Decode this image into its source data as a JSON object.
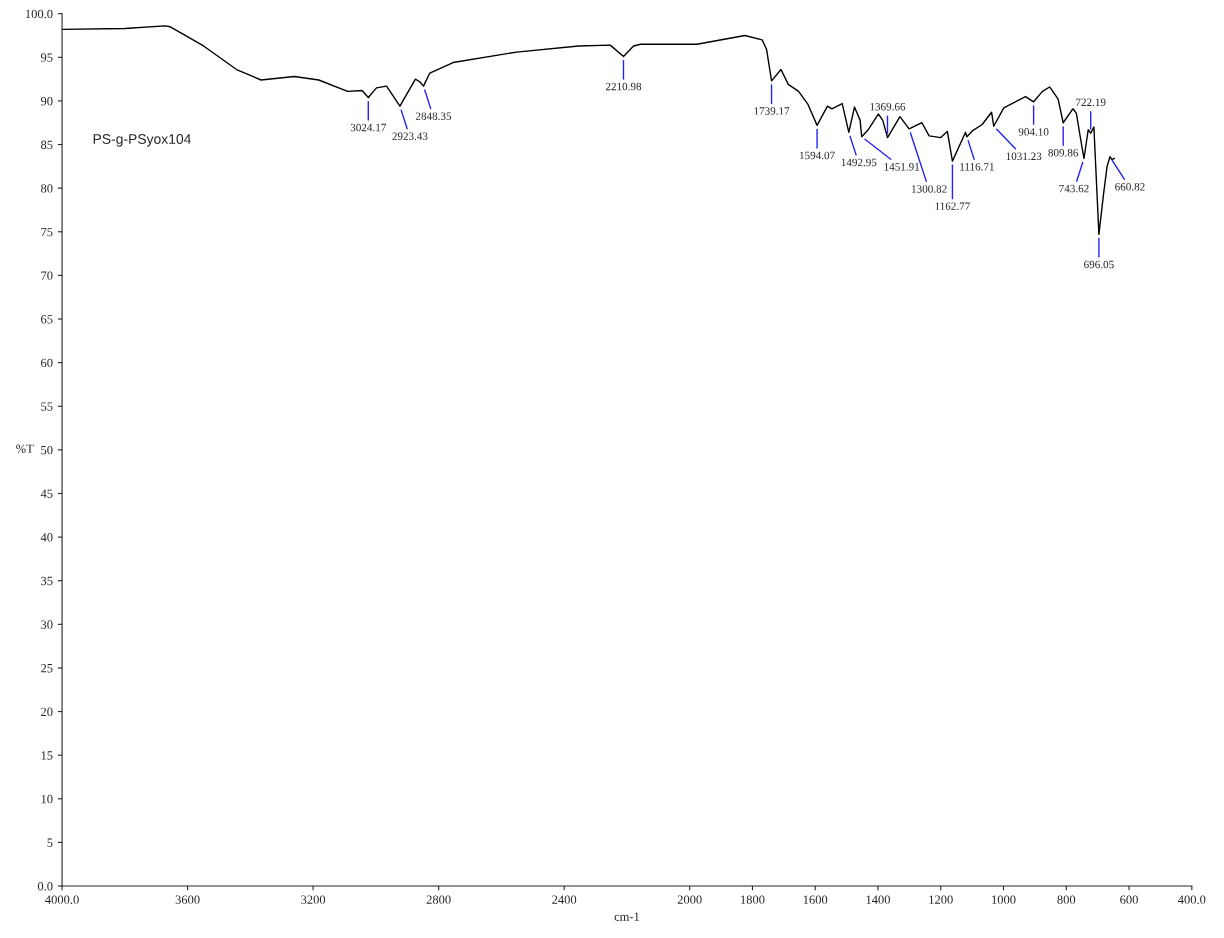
{
  "chart_data": {
    "type": "line",
    "xlabel": "cm-1",
    "ylabel": "%T",
    "xlim": [
      4000,
      400
    ],
    "ylim": [
      0,
      100
    ],
    "xticks": [
      {
        "value": 4000,
        "label": "4000.0"
      },
      3600,
      3200,
      2800,
      2400,
      2000,
      1800,
      1600,
      1400,
      1200,
      1000,
      800,
      600,
      {
        "value": 400,
        "label": "400.0"
      }
    ],
    "yticks": [
      {
        "value": 0,
        "label": "0.0"
      },
      5,
      10,
      15,
      20,
      25,
      30,
      35,
      40,
      45,
      50,
      55,
      60,
      65,
      70,
      75,
      80,
      85,
      90,
      95,
      {
        "value": 100,
        "label": "100.0"
      }
    ],
    "grid": false,
    "series": [
      {
        "color": "#000000",
        "x": [
          4000,
          3800,
          3673,
          3655,
          3549,
          3444,
          3366,
          3260,
          3182,
          3090,
          3044,
          3024.17,
          2998,
          2966,
          2923.43,
          2874,
          2860,
          2848.35,
          2828,
          2754,
          2552,
          2354,
          2253,
          2210.98,
          2179,
          2156,
          1977,
          1824,
          1769,
          1755,
          1739.17,
          1709,
          1686,
          1653,
          1623,
          1594.07,
          1561,
          1547,
          1514,
          1492.95,
          1475,
          1457,
          1451.91,
          1431,
          1399,
          1385,
          1369.66,
          1330,
          1300.82,
          1260,
          1237,
          1200,
          1179,
          1162.77,
          1121,
          1116.71,
          1098,
          1068,
          1038,
          1031.23,
          999,
          930,
          904.1,
          876,
          853,
          826,
          809.86,
          779,
          768,
          750,
          743.62,
          730,
          722.19,
          712,
          696.05,
          681,
          670,
          660.82,
          655,
          647
        ],
        "values": [
          98.2,
          98.3,
          98.6,
          98.5,
          96.3,
          93.6,
          92.4,
          92.8,
          92.4,
          91.1,
          91.2,
          90.4,
          91.5,
          91.7,
          89.4,
          92.5,
          92.2,
          91.7,
          93.2,
          94.4,
          95.6,
          96.3,
          96.4,
          95.1,
          96.3,
          96.5,
          96.5,
          97.5,
          97.0,
          95.9,
          92.3,
          93.6,
          91.9,
          91.1,
          89.6,
          87.2,
          89.4,
          89.1,
          89.7,
          86.4,
          89.3,
          87.8,
          85.9,
          86.7,
          88.5,
          87.8,
          85.8,
          88.2,
          86.8,
          87.5,
          86.0,
          85.8,
          86.5,
          83.1,
          86.4,
          85.9,
          86.6,
          87.3,
          88.7,
          87.1,
          89.2,
          90.5,
          89.9,
          91.1,
          91.6,
          90.2,
          87.5,
          89.1,
          88.6,
          84.7,
          83.4,
          86.7,
          86.3,
          87.0,
          74.7,
          79.4,
          82.5,
          83.6,
          83.3,
          83.4
        ]
      }
    ],
    "annotations": [
      "PS-g-PSyox104",
      {
        "text": "3024.17",
        "x": 3024.17,
        "y": 90.4
      },
      {
        "text": "2923.43",
        "x": 2923.43,
        "y": 89.4
      },
      {
        "text": "2848.35",
        "x": 2848.35,
        "y": 91.7
      },
      {
        "text": "2210.98",
        "x": 2210.98,
        "y": 95.1
      },
      {
        "text": "1739.17",
        "x": 1739.17,
        "y": 92.3
      },
      {
        "text": "1594.07",
        "x": 1594.07,
        "y": 87.2
      },
      {
        "text": "1492.95",
        "x": 1492.95,
        "y": 86.4
      },
      {
        "text": "1451.91",
        "x": 1451.91,
        "y": 85.9
      },
      {
        "text": "1369.66",
        "x": 1369.66,
        "y": 85.8
      },
      {
        "text": "1300.82",
        "x": 1300.82,
        "y": 86.8
      },
      {
        "text": "1162.77",
        "x": 1162.77,
        "y": 83.1
      },
      {
        "text": "1116.71",
        "x": 1116.71,
        "y": 85.9
      },
      {
        "text": "1031.23",
        "x": 1031.23,
        "y": 87.1
      },
      {
        "text": "904.10",
        "x": 904.1,
        "y": 89.9
      },
      {
        "text": "809.86",
        "x": 809.86,
        "y": 87.5
      },
      {
        "text": "743.62",
        "x": 743.62,
        "y": 83.4
      },
      {
        "text": "722.19",
        "x": 722.19,
        "y": 86.3
      },
      {
        "text": "696.05",
        "x": 696.05,
        "y": 74.7
      },
      {
        "text": "660.82",
        "x": 660.82,
        "y": 83.6
      }
    ]
  }
}
